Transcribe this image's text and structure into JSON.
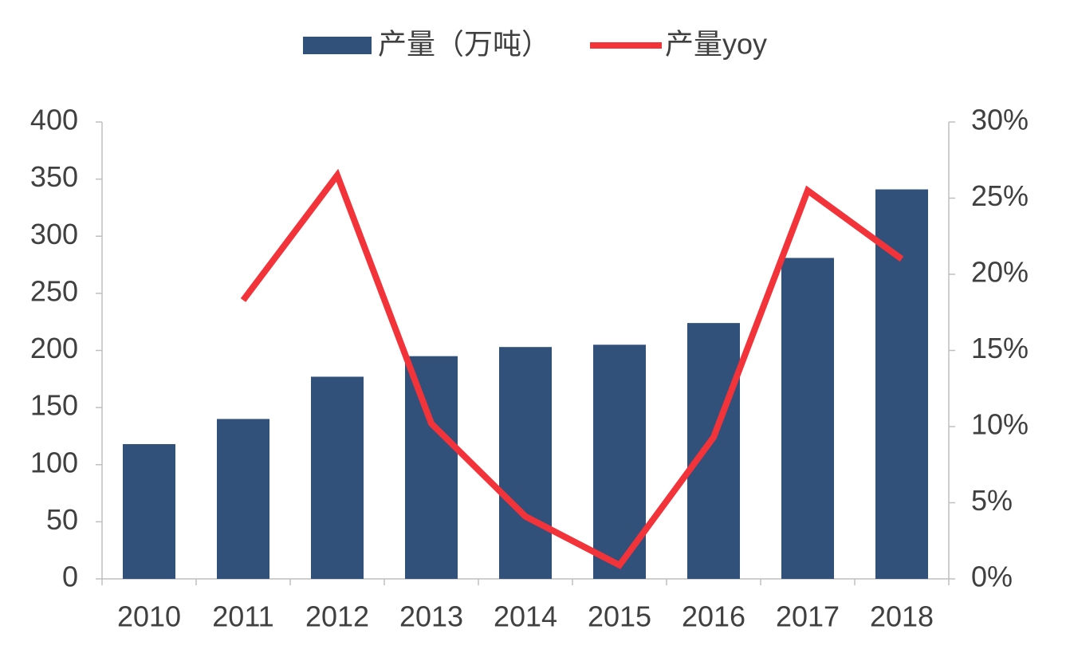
{
  "chart_data": {
    "type": "bar-line",
    "categories": [
      "2010",
      "2011",
      "2012",
      "2013",
      "2014",
      "2015",
      "2016",
      "2017",
      "2018"
    ],
    "series": [
      {
        "name": "产量（万吨）",
        "type": "bar",
        "color": "#31507a",
        "values": [
          118,
          140,
          177,
          195,
          203,
          205,
          224,
          281,
          341
        ]
      },
      {
        "name": "产量yoy",
        "type": "line",
        "axis": "y2",
        "color": "#f2333a",
        "values": [
          null,
          18.3,
          26.5,
          10.2,
          4.1,
          0.9,
          9.3,
          25.5,
          21.0
        ]
      }
    ],
    "ylim": [
      0,
      400
    ],
    "yticks": [
      0,
      50,
      100,
      150,
      200,
      250,
      300,
      350,
      400
    ],
    "y2lim": [
      0,
      30
    ],
    "y2ticks": [
      {
        "value": 0,
        "label": "0%"
      },
      {
        "value": 5,
        "label": "5%"
      },
      {
        "value": 10,
        "label": "10%"
      },
      {
        "value": 15,
        "label": "15%"
      },
      {
        "value": 20,
        "label": "20%"
      },
      {
        "value": 25,
        "label": "25%"
      },
      {
        "value": 30,
        "label": "30%"
      }
    ],
    "grid": false,
    "legend": "top"
  }
}
